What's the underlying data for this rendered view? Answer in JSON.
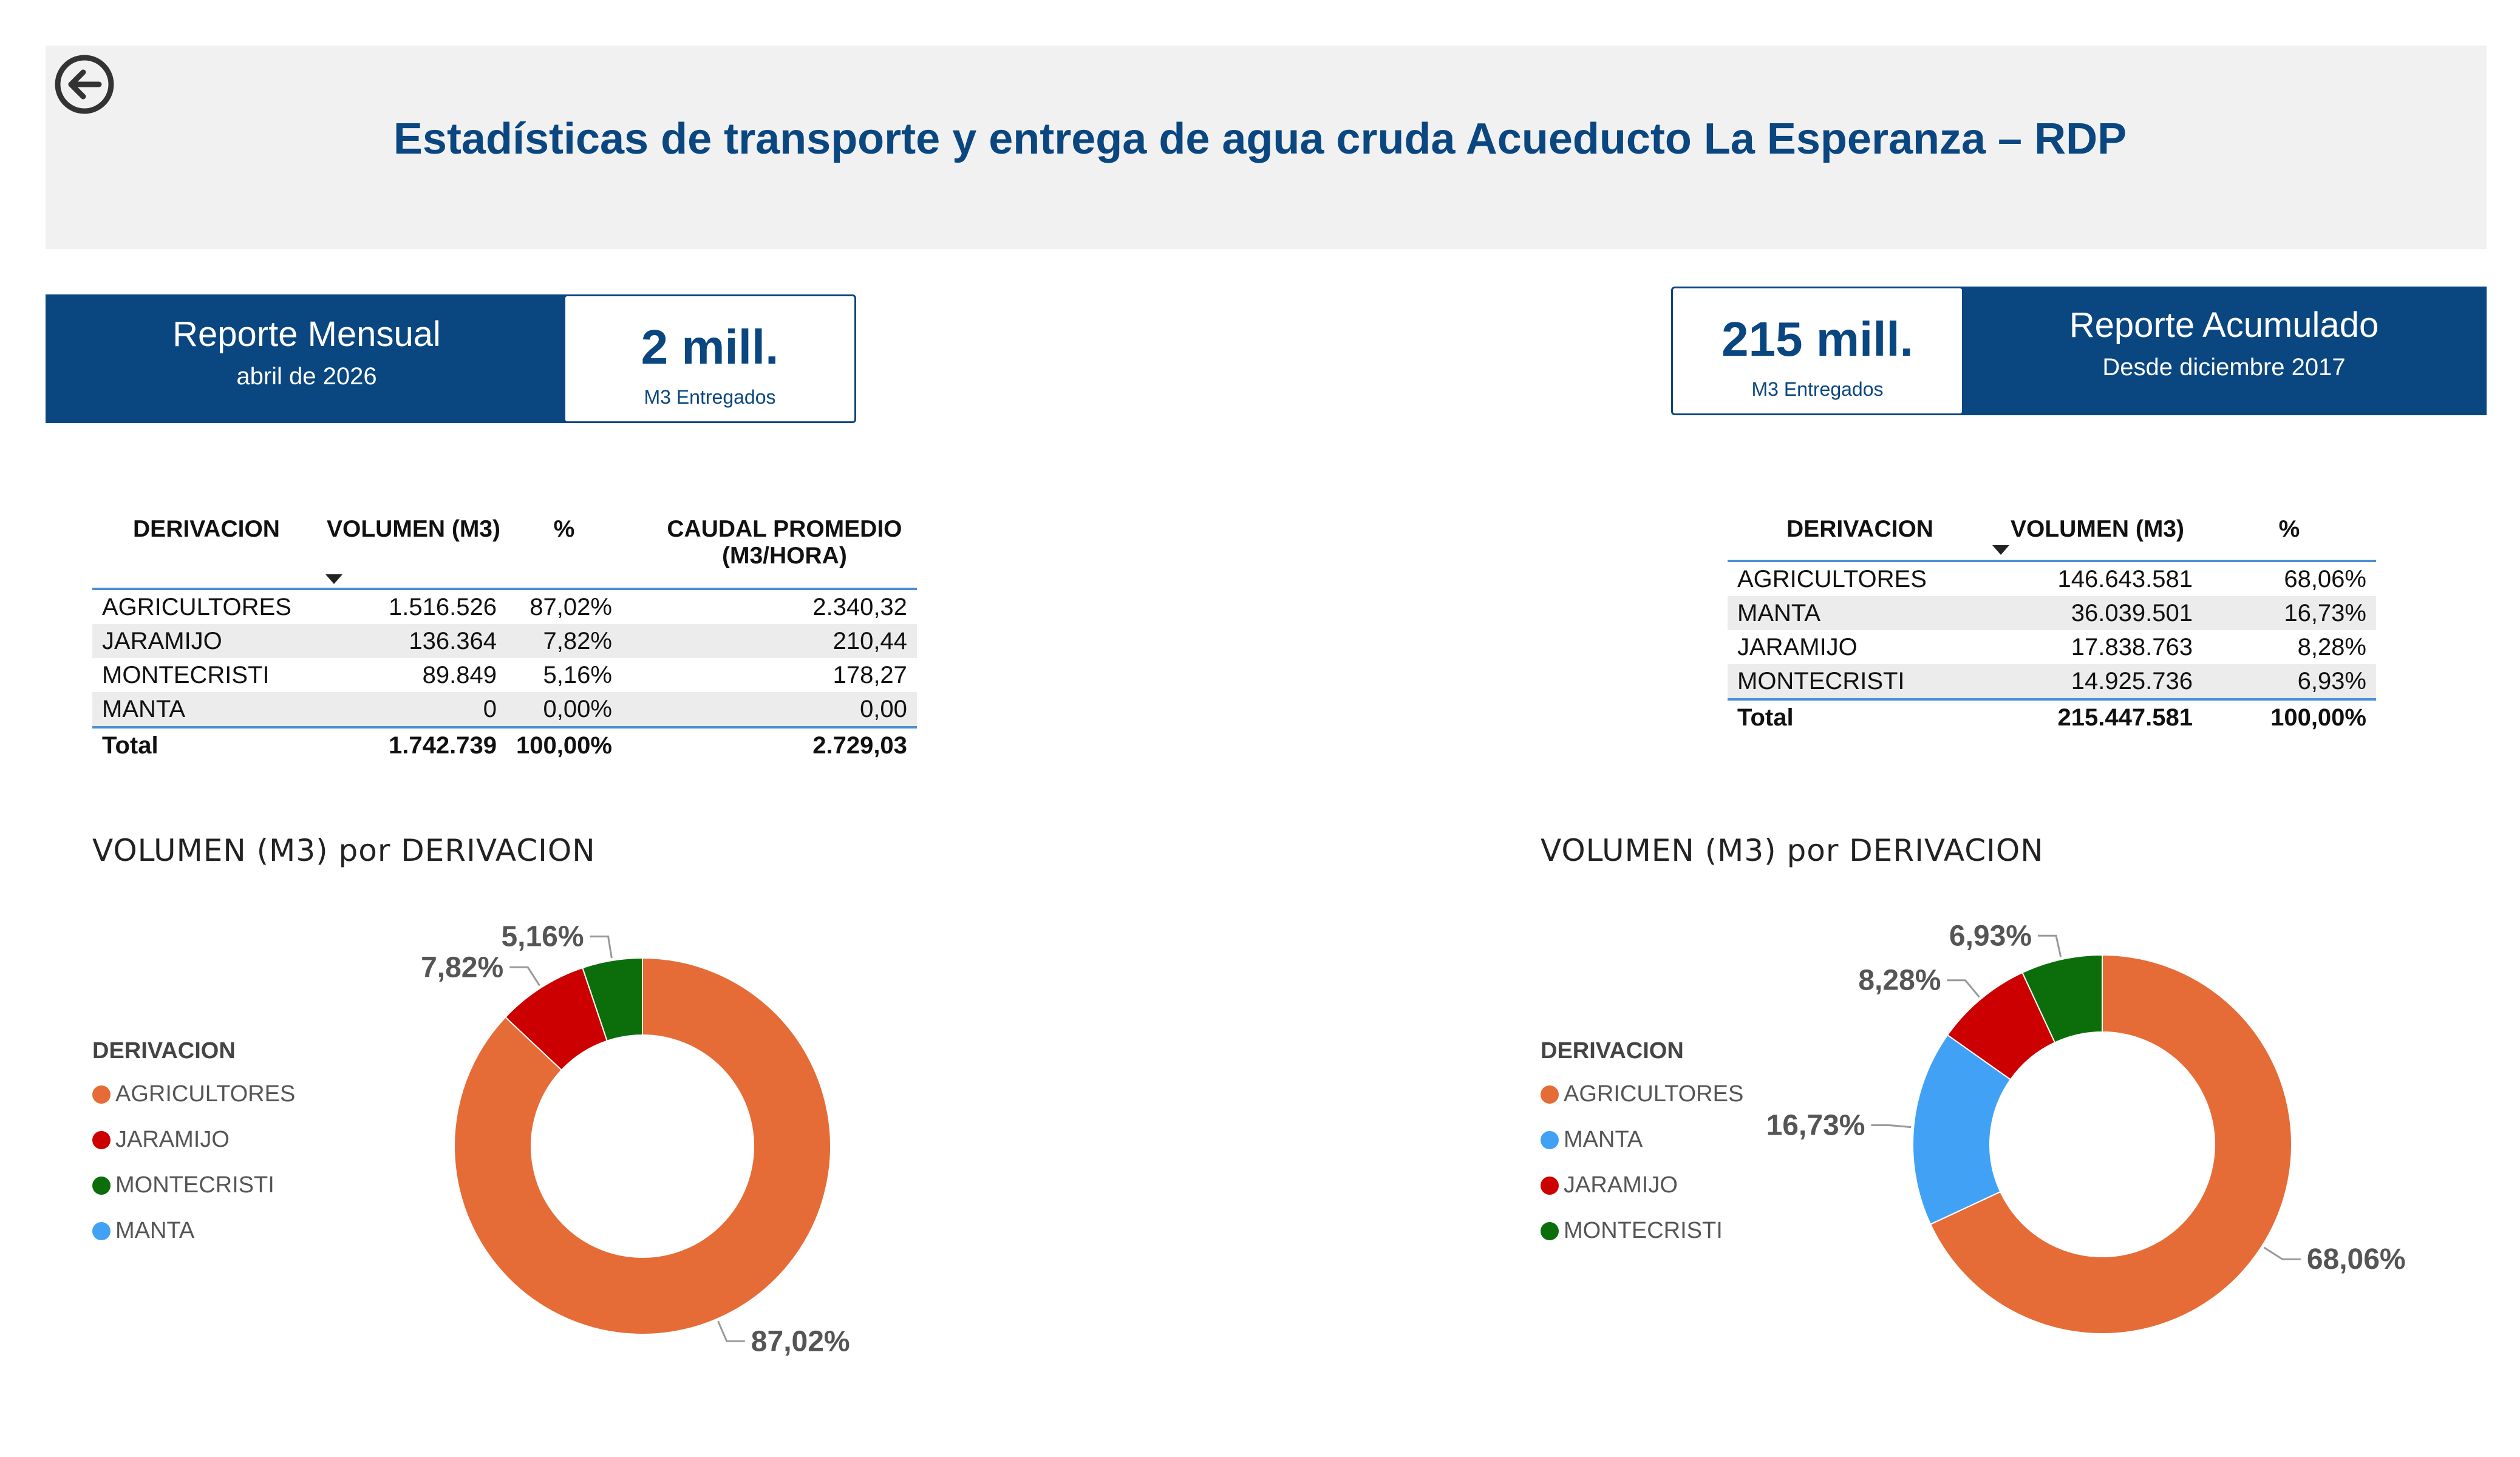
{
  "title": "Estadísticas de transporte y entrega de agua cruda Acueducto La Esperanza – RDP",
  "colors": {
    "brand": "#0a4680",
    "agricultores": "#e66c37",
    "jaramijo": "#cc0000",
    "montecristi": "#0b6e0b",
    "manta": "#41a2f5"
  },
  "icons": {
    "back": "back-arrow-circle-icon"
  },
  "monthly": {
    "label": "Reporte Mensual",
    "period": "abril de 2026",
    "kpi_value": "2 mill.",
    "kpi_label": "M3 Entregados",
    "headers": [
      "DERIVACION",
      "VOLUMEN (M3)",
      "%",
      "CAUDAL PROMEDIO (M3/HORA)"
    ],
    "rows": [
      [
        "AGRICULTORES",
        "1.516.526",
        "87,02%",
        "2.340,32"
      ],
      [
        "JARAMIJO",
        "136.364",
        "7,82%",
        "210,44"
      ],
      [
        "MONTECRISTI",
        "89.849",
        "5,16%",
        "178,27"
      ],
      [
        "MANTA",
        "0",
        "0,00%",
        "0,00"
      ]
    ],
    "total": [
      "Total",
      "1.742.739",
      "100,00%",
      "2.729,03"
    ]
  },
  "cumulative": {
    "label": "Reporte Acumulado",
    "period": "Desde diciembre 2017",
    "kpi_value": "215 mill.",
    "kpi_label": "M3 Entregados",
    "headers": [
      "DERIVACION",
      "VOLUMEN (M3)",
      "%"
    ],
    "rows": [
      [
        "AGRICULTORES",
        "146.643.581",
        "68,06%"
      ],
      [
        "MANTA",
        "36.039.501",
        "16,73%"
      ],
      [
        "JARAMIJO",
        "17.838.763",
        "8,28%"
      ],
      [
        "MONTECRISTI",
        "14.925.736",
        "6,93%"
      ]
    ],
    "total": [
      "Total",
      "215.447.581",
      "100,00%"
    ]
  },
  "chart_data": [
    {
      "type": "pie",
      "title": "VOLUMEN (M3) por DERIVACION",
      "legend_title": "DERIVACION",
      "legend_position": "left",
      "categories": [
        "AGRICULTORES",
        "JARAMIJO",
        "MONTECRISTI",
        "MANTA"
      ],
      "values": [
        1516526,
        136364,
        89849,
        0
      ],
      "labels": [
        "87,02%",
        "7,82%",
        "5,16%",
        ""
      ],
      "colors": [
        "#e66c37",
        "#cc0000",
        "#0b6e0b",
        "#41a2f5"
      ]
    },
    {
      "type": "pie",
      "title": "VOLUMEN (M3) por DERIVACION",
      "legend_title": "DERIVACION",
      "legend_position": "left",
      "categories": [
        "AGRICULTORES",
        "MANTA",
        "JARAMIJO",
        "MONTECRISTI"
      ],
      "values": [
        146643581,
        36039501,
        17838763,
        14925736
      ],
      "labels": [
        "68,06%",
        "16,73%",
        "8,28%",
        "6,93%"
      ],
      "colors": [
        "#e66c37",
        "#41a2f5",
        "#cc0000",
        "#0b6e0b"
      ]
    }
  ]
}
